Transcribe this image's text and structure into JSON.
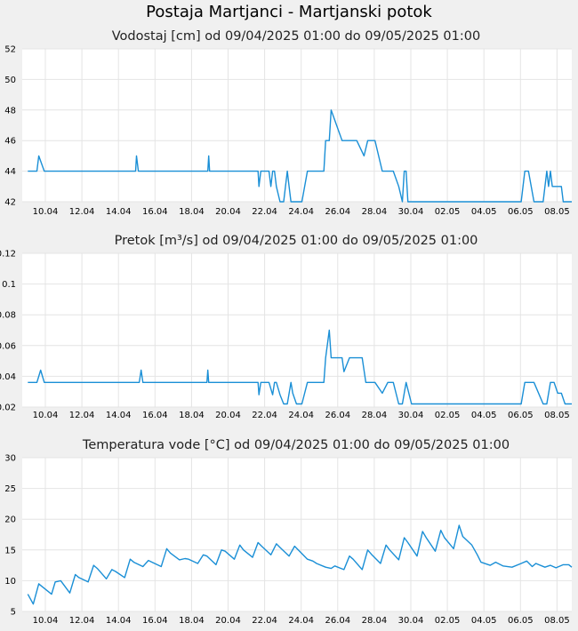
{
  "page_title": "Postaja Martjanci - Martjanski potok",
  "colors": {
    "line": "#1a8fd6",
    "grid": "#e4e4e4",
    "plot_bg": "#ffffff",
    "page_bg": "#f0f0f0"
  },
  "x_tick_labels": [
    "10.04",
    "12.04",
    "14.04",
    "16.04",
    "18.04",
    "20.04",
    "22.04",
    "24.04",
    "26.04",
    "28.04",
    "30.04",
    "02.05",
    "04.05",
    "06.05",
    "08.05"
  ],
  "chart_data": [
    {
      "type": "line",
      "title": "Vodostaj [cm] od 09/04/2025 01:00 do 09/05/2025 01:00",
      "x_range": [
        "09/04/2025 01:00",
        "09/05/2025 01:00"
      ],
      "ylim": [
        42,
        52
      ],
      "y_ticks": [
        "52",
        "50",
        "48",
        "46",
        "44",
        "42"
      ],
      "grid": true,
      "series": [
        {
          "x": [
            0,
            0.5,
            0.6,
            0.9,
            1,
            5.9,
            5.95,
            6.05,
            6.1,
            9.85,
            9.9,
            9.95,
            10,
            12.6,
            12.65,
            12.75,
            13,
            13.2,
            13.3,
            13.4,
            13.5,
            13.6,
            13.8,
            14,
            14.2,
            14.3,
            14.4,
            14.5,
            14.7,
            15,
            15.3,
            15.6,
            16,
            16.2,
            16.3,
            16.5,
            16.6,
            17.2,
            17.3,
            17.6,
            18,
            18.4,
            18.6,
            18.7,
            19,
            19.4,
            19.7,
            19.9,
            20,
            20.3,
            20.5,
            20.6,
            20.7,
            20.8,
            21,
            22,
            22.2,
            25,
            27,
            27.2,
            27.3,
            27.4,
            27.7,
            28.2,
            28.4,
            28.5,
            28.6,
            28.7,
            29.2,
            29.3,
            29.4,
            30
          ],
          "y": [
            44,
            44,
            45,
            44,
            44,
            44,
            45,
            44,
            44,
            44,
            45,
            44,
            44,
            44,
            43,
            44,
            44,
            44,
            43,
            44,
            44,
            43,
            42,
            42,
            44,
            43,
            42,
            42,
            42,
            42,
            44,
            44,
            44,
            44,
            46,
            46,
            48,
            46,
            46,
            46,
            46,
            45,
            46,
            46,
            46,
            44,
            44,
            44,
            44,
            43,
            42,
            44,
            44,
            42,
            42,
            42,
            42,
            42,
            42,
            44,
            44,
            44,
            42,
            42,
            44,
            43,
            44,
            43,
            43,
            42,
            42,
            42
          ]
        }
      ]
    },
    {
      "type": "line",
      "title": "Pretok [m³/s] od 09/04/2025 01:00 do 09/05/2025 01:00",
      "x_range": [
        "09/04/2025 01:00",
        "09/05/2025 01:00"
      ],
      "ylim": [
        0.02,
        0.12
      ],
      "y_ticks": [
        "0.12",
        "0.1",
        "0.08",
        "0.06",
        "0.04",
        "0.02"
      ],
      "grid": true,
      "series": [
        {
          "x": [
            0,
            0.5,
            0.7,
            0.9,
            6.1,
            6.2,
            6.3,
            9.8,
            9.85,
            9.9,
            12.6,
            12.65,
            12.75,
            13,
            13.2,
            13.4,
            13.5,
            13.6,
            13.8,
            14,
            14.2,
            14.4,
            14.5,
            14.7,
            15,
            15.3,
            15.6,
            16,
            16.2,
            16.3,
            16.5,
            16.6,
            17.2,
            17.3,
            17.6,
            18,
            18.3,
            18.5,
            18.7,
            19,
            19.4,
            19.7,
            20,
            20.3,
            20.5,
            20.7,
            21,
            25,
            27,
            27.2,
            27.4,
            27.7,
            28.2,
            28.4,
            28.6,
            28.8,
            29,
            29.2,
            29.4,
            30
          ],
          "y": [
            0.036,
            0.036,
            0.044,
            0.036,
            0.036,
            0.044,
            0.036,
            0.036,
            0.044,
            0.036,
            0.036,
            0.028,
            0.036,
            0.036,
            0.036,
            0.028,
            0.036,
            0.036,
            0.028,
            0.022,
            0.022,
            0.036,
            0.029,
            0.022,
            0.022,
            0.036,
            0.036,
            0.036,
            0.036,
            0.052,
            0.07,
            0.052,
            0.052,
            0.043,
            0.052,
            0.052,
            0.052,
            0.036,
            0.036,
            0.036,
            0.029,
            0.036,
            0.036,
            0.022,
            0.022,
            0.036,
            0.022,
            0.022,
            0.022,
            0.036,
            0.036,
            0.036,
            0.022,
            0.022,
            0.036,
            0.036,
            0.029,
            0.029,
            0.022,
            0.022
          ]
        }
      ]
    },
    {
      "type": "line",
      "title": "Temperatura vode [°C] od 09/04/2025 01:00 do 09/05/2025 01:00",
      "x_range": [
        "09/04/2025 01:00",
        "09/05/2025 01:00"
      ],
      "ylim": [
        5,
        30
      ],
      "y_ticks": [
        "30",
        "25",
        "20",
        "15",
        "10",
        "5"
      ],
      "grid": true,
      "series": [
        {
          "x": [
            0,
            0.3,
            0.6,
            0.8,
            1.3,
            1.5,
            1.8,
            2.3,
            2.6,
            2.8,
            3.3,
            3.6,
            3.8,
            4.3,
            4.6,
            4.8,
            5.3,
            5.6,
            5.8,
            6.3,
            6.6,
            6.8,
            7.3,
            7.6,
            7.8,
            8.3,
            8.6,
            8.8,
            9.3,
            9.6,
            9.8,
            10.3,
            10.6,
            10.8,
            11.3,
            11.6,
            11.8,
            12.3,
            12.6,
            12.8,
            13.3,
            13.6,
            13.8,
            14.3,
            14.6,
            14.8,
            15.3,
            15.6,
            15.8,
            16.3,
            16.6,
            16.8,
            17.3,
            17.6,
            17.8,
            18.3,
            18.6,
            18.8,
            19.3,
            19.6,
            19.8,
            20.3,
            20.6,
            20.8,
            21.3,
            21.6,
            21.8,
            22.3,
            22.6,
            22.8,
            23.3,
            23.6,
            23.8,
            24.3,
            24.6,
            24.8,
            25.3,
            25.6,
            26,
            26.5,
            27,
            27.3,
            27.6,
            27.8,
            28.3,
            28.6,
            28.9,
            29.3,
            29.6,
            30
          ],
          "y": [
            7.8,
            6.2,
            9.5,
            9.0,
            7.8,
            9.8,
            10.0,
            8.0,
            11.0,
            10.5,
            9.8,
            12.5,
            12.0,
            10.3,
            11.8,
            11.5,
            10.5,
            13.5,
            13.0,
            12.3,
            13.3,
            13.0,
            12.3,
            15.2,
            14.5,
            13.4,
            13.6,
            13.5,
            12.8,
            14.2,
            14.0,
            12.6,
            15.0,
            14.8,
            13.5,
            15.8,
            15.0,
            13.8,
            16.2,
            15.6,
            14.2,
            16.0,
            15.4,
            14.0,
            15.6,
            15.0,
            13.5,
            13.2,
            12.8,
            12.2,
            12.0,
            12.4,
            11.8,
            14.0,
            13.5,
            11.8,
            15.0,
            14.3,
            12.8,
            15.8,
            15.0,
            13.4,
            17.0,
            16.2,
            14.0,
            18.0,
            17.0,
            14.8,
            18.2,
            17.0,
            15.2,
            19.0,
            17.2,
            15.8,
            14.2,
            13.0,
            12.5,
            13.0,
            12.4,
            12.2,
            12.8,
            13.2,
            12.3,
            12.8,
            12.2,
            12.5,
            12.1,
            12.6,
            12.6,
            12.2
          ]
        }
      ]
    }
  ]
}
